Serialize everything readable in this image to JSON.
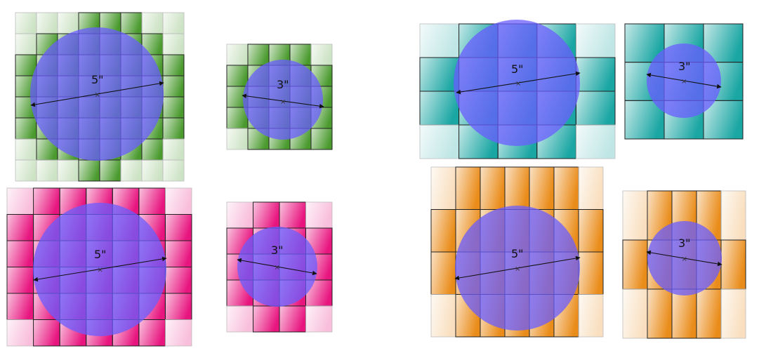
{
  "panels": [
    {
      "id": "green-5",
      "size_label": "5\"",
      "color": "#4a9a2e",
      "tiles_highlighted": "all",
      "circle_color": "#6a5cff"
    },
    {
      "id": "green-3",
      "size_label": "3\"",
      "color": "#4a9a2e",
      "circle_color": "#6a5cff"
    },
    {
      "id": "pink-5",
      "size_label": "5\"",
      "color": "#e8157f",
      "circle_color": "#6a5cff"
    },
    {
      "id": "pink-3",
      "size_label": "3\"",
      "color": "#e8157f",
      "circle_color": "#6a5cff"
    },
    {
      "id": "teal-5",
      "size_label": "5\"",
      "color": "#1aa6a3",
      "circle_color": "#6a5cff"
    },
    {
      "id": "teal-3",
      "size_label": "3\"",
      "color": "#1aa6a3",
      "circle_color": "#6a5cff"
    },
    {
      "id": "orange-5",
      "size_label": "5\"",
      "color": "#ea8c1a",
      "circle_color": "#6a5cff"
    },
    {
      "id": "orange-3",
      "size_label": "3\"",
      "color": "#ea8c1a",
      "circle_color": "#6a5cff"
    }
  ]
}
